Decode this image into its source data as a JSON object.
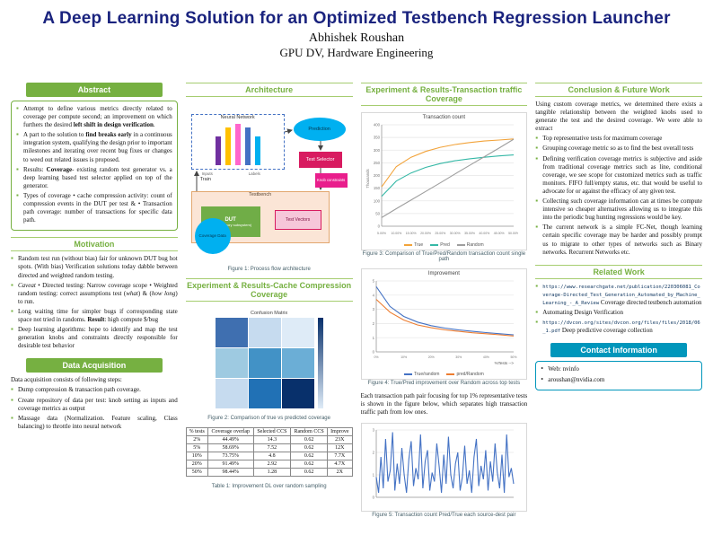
{
  "header": {
    "title": "A Deep Learning Solution for an Optimized Testbench Regression Launcher",
    "author": "Abhishek Roushan",
    "affiliation": "GPU DV, Hardware Engineering"
  },
  "colors": {
    "title_navy": "#1a237e",
    "accent_green": "#76b041",
    "accent_teal": "#0096bb"
  },
  "sections": {
    "abstract": "Abstract",
    "motivation": "Motivation",
    "data_acquisition": "Data Acquisition",
    "architecture": "Architecture",
    "exp_cache": "Experiment & Results-Cache Compression Coverage",
    "exp_traffic": "Experiment & Results-Transaction traffic Coverage",
    "conclusion": "Conclusion & Future Work",
    "related": "Related Work",
    "contact": "Contact Information"
  },
  "abstract": {
    "bullets": [
      "Attempt to define various metrics directly related to coverage per compute second; an improvement on which furthers the desired <b>left shift in design verification</b>.",
      "A part to the solution to <b>find breaks early</b> in a continuous integration system, qualifying the design prior to important milestones and iterating over recent bug fixes or changes to weed out related issues is proposed.",
      "Results: <b>Coverage</b>- existing random test generator vs. a deep learning based test selector applied on top of the generator.",
      "Types of coverage • cache compression activity: count of compression events in the DUT per test & • Transaction path coverage: number of transactions for specific data path."
    ]
  },
  "motivation": {
    "bullets": [
      "Random test run (without bias) fair for unknown DUT bug hot spots. (With bias) Verification solutions today dabble between directed and weighted random testing.",
      "<i>Caveat</i> • Directed testing: Narrow coverage scope • Weighted random testing: correct assumptions test (<i>what</i>) & (<i>how long</i>) to run.",
      "Long waiting time for simpler bugs if corresponding state space not tried in randoms. <b>Result</b>: high compute $/bug",
      "Deep learning algorithms: hope to identify and map the test generation knobs and constraints directly responsible for desirable test behavior"
    ]
  },
  "data_acquisition": {
    "intro": "Data acquisition consists of following steps:",
    "bullets": [
      "Dump compression & transaction path coverage.",
      "Create repository of data per test: knob setting as inputs and coverage metrics as output",
      "Massage data (Normalization. Feature scaling, Class balancing) to throttle into neural network"
    ]
  },
  "architecture": {
    "caption": "Figure 1: Process flow architecture",
    "labels": {
      "neural_network": "Neural Network",
      "prediction": "Prediction",
      "test_selector": "Test Selector",
      "knob_constraints": "Knob constraints",
      "train": "Train",
      "inputs": "Inputs",
      "io_labels": "Labels",
      "testbench": "Testbench",
      "dut": "DUT",
      "dut_sub": "(GPU memory subsystem)",
      "test_vectors": "Test Vectors",
      "coverage_data": "Coverage Data"
    }
  },
  "exp_traffic": {
    "para": "Each transaction path pair focusing for top 1% representative tests is shown in the figure below, which separates high transaction traffic path from low ones."
  },
  "table1": {
    "caption": "Table 1: Improvement DL over random sampling",
    "headers": [
      "% tests",
      "Coverage overlap",
      "Selected CCS",
      "Random CCS",
      "Improve"
    ],
    "rows": [
      [
        "2%",
        "44.49%",
        "14.3",
        "0.62",
        "23X"
      ],
      [
        "5%",
        "58.69%",
        "7.52",
        "0.62",
        "12X"
      ],
      [
        "10%",
        "73.75%",
        "4.8",
        "0.62",
        "7.7X"
      ],
      [
        "20%",
        "91.49%",
        "2.92",
        "0.62",
        "4.7X"
      ],
      [
        "50%",
        "98.44%",
        "1.28",
        "0.62",
        "2X"
      ]
    ]
  },
  "chart_data": [
    {
      "type": "heatmap",
      "title": "Confusion Matrix",
      "caption": "Figure 2: Comparison of true vs predicted coverage",
      "matrix": [
        [
          "#3f6fb0",
          "#c6dbef",
          "#deebf7"
        ],
        [
          "#9ecae1",
          "#4292c6",
          "#6baed6"
        ],
        [
          "#c6dbef",
          "#2171b5",
          "#08306b"
        ]
      ]
    },
    {
      "type": "line",
      "title": "Transaction count",
      "caption": "Figure 3: Comparison of True/Pred/Random transaction count single path",
      "ylabel": "Thousands",
      "ylim": [
        0,
        400
      ],
      "yticks": [
        0,
        50,
        100,
        150,
        200,
        250,
        300,
        350,
        400
      ],
      "x": [
        "5.00%",
        "10.00%",
        "15.00%",
        "20.00%",
        "25.00%",
        "30.00%",
        "35.00%",
        "40.00%",
        "45.00%",
        "50.00%"
      ],
      "x_step": 1,
      "series": [
        {
          "name": "True",
          "color": "#f2a33a",
          "values": [
            155,
            235,
            272,
            295,
            311,
            322,
            330,
            336,
            340,
            344
          ]
        },
        {
          "name": "Pred",
          "color": "#35b8a6",
          "values": [
            118,
            178,
            210,
            232,
            247,
            258,
            266,
            272,
            277,
            281
          ]
        },
        {
          "name": "Random",
          "color": "#9e9e9e",
          "values": [
            34,
            69,
            103,
            137,
            171,
            206,
            240,
            274,
            308,
            343
          ]
        }
      ]
    },
    {
      "type": "line",
      "title": "Improvement",
      "caption": "Figure 4: True/Pred improvement over Random across top tests",
      "xlabel": "%Tests -->",
      "ylim": [
        0,
        5
      ],
      "yticks": [
        0,
        1,
        2,
        3,
        4,
        5
      ],
      "x": [
        "0%",
        "5%",
        "10%",
        "15%",
        "20%",
        "25%",
        "30%",
        "35%",
        "40%",
        "45%",
        "50%"
      ],
      "x_step": 2,
      "series": [
        {
          "name": "True/random",
          "color": "#4472c4",
          "values": [
            4.6,
            3.2,
            2.5,
            2.1,
            1.85,
            1.68,
            1.55,
            1.45,
            1.36,
            1.28,
            1.2
          ]
        },
        {
          "name": "pred/Random",
          "color": "#ed7d31",
          "values": [
            3.7,
            2.8,
            2.25,
            1.9,
            1.7,
            1.55,
            1.45,
            1.35,
            1.28,
            1.2,
            1.12
          ]
        }
      ]
    },
    {
      "type": "line",
      "title": "",
      "caption": "Figure 5: Transaction count Pred/True each source-dest pair",
      "ylim": [
        0,
        3
      ],
      "yticks": [
        0,
        1,
        2,
        3
      ],
      "series": [
        {
          "name": "Pred/True",
          "color": "#4472c4",
          "values": [
            0.9,
            0.2,
            1.8,
            0.4,
            2.6,
            0.7,
            1.2,
            2.9,
            0.3,
            1.5,
            0.6,
            2.2,
            1.0,
            0.2,
            1.7,
            2.5,
            0.5,
            1.3,
            0.8,
            2.8,
            0.4,
            1.6,
            2.1,
            0.3,
            1.1,
            0.7,
            2.4,
            1.4,
            0.2,
            1.9,
            0.6,
            2.7,
            1.0,
            0.4,
            1.5,
            2.0,
            0.3,
            0.9,
            2.3,
            0.6,
            1.2,
            0.2,
            1.8,
            2.6,
            0.5,
            1.4,
            0.8,
            2.1,
            0.3,
            1.6,
            0.7,
            2.4,
            1.1,
            0.4,
            1.9,
            0.2,
            2.8,
            0.9,
            1.3,
            0.6
          ]
        }
      ]
    }
  ],
  "conclusion": {
    "intro": "Using custom coverage metrics, we determined there exists a tangible relationship between the weighted knobs used to generate the test and the desired coverage. We were able to extract",
    "bullets": [
      "Top representative tests for maximum coverage",
      "Grouping coverage metric so as to find the best overall tests",
      "Defining verification coverage metrics is subjective and aside from traditional coverage metrics such as line, conditional coverage, we see scope for customized metrics such as traffic monitors. FIFO full/empty status, etc. that would be useful to advocate for or against the efficacy of any given test.",
      "Collecting such coverage information can at times be compute intensive so cheaper alternatives allowing us to integrate this into the periodic bug hunting regressions would be key.",
      "The current network is a simple FC-Net, though learning certain specific coverage may be harder and possibly prompt us to migrate to other types of networks such as Binary networks. Recurrent Networks etc."
    ]
  },
  "related": {
    "items": [
      {
        "url": "https://www.researchgate.net/publication/220306081_Coverage-Directed_Test_Generation_Automated_by_Machine_Learning_-_A_Review",
        "text": "Coverage directed testbench automation"
      },
      {
        "url": "",
        "text": "Automating Design Verification"
      },
      {
        "url": "https://dvcon.org/sites/dvcon.org/files/files/2018/06_1.pdf",
        "text": "Deep predictive coverage collection"
      }
    ]
  },
  "contact": {
    "items": [
      "Web: nvinfo",
      "aroushan@nvidia.com"
    ]
  }
}
